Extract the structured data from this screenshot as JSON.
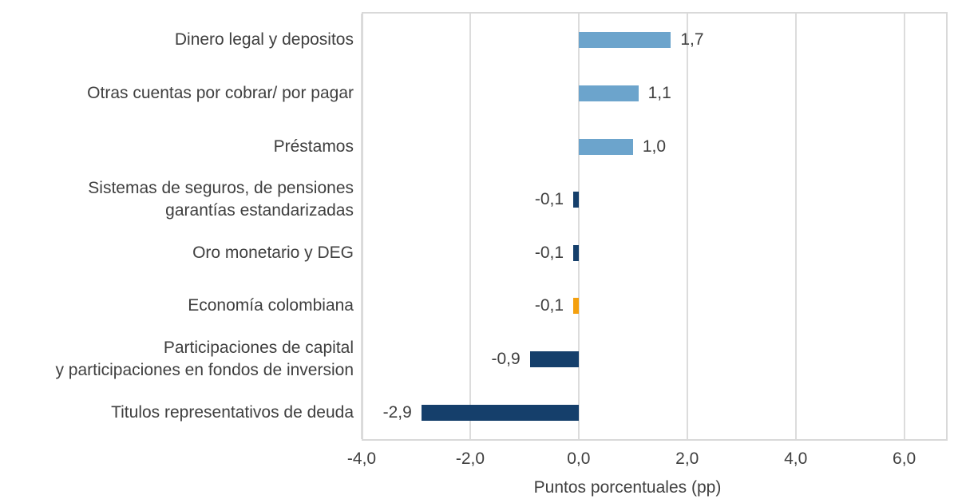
{
  "figure": {
    "background": "#FFFFFF"
  },
  "chart_data": {
    "type": "bar",
    "orientation": "horizontal",
    "title": "",
    "xlabel": "Puntos porcentuales (pp)",
    "ylabel": "",
    "categories": [
      "Dinero legal y depositos",
      "Otras cuentas por cobrar/ por pagar",
      "Préstamos",
      "Sistemas de seguros, de pensiones\ngarantías estandarizadas",
      "Oro monetario y DEG",
      "Economía colombiana",
      "Participaciones de capital\ny participaciones en fondos de inversion",
      "Titulos representativos de deuda"
    ],
    "values": [
      1.7,
      1.1,
      1.0,
      -0.1,
      -0.1,
      -0.1,
      -0.9,
      -2.9
    ],
    "value_labels": [
      "1,7",
      "1,1",
      "1,0",
      "-0,1",
      "-0,1",
      "-0,1",
      "-0,9",
      "-2,9"
    ],
    "bar_colors": [
      "#6CA4CC",
      "#6CA4CC",
      "#6CA4CC",
      "#153F6B",
      "#153F6B",
      "#F4A00E",
      "#153F6B",
      "#153F6B"
    ],
    "xlim": [
      -4.0,
      6.8
    ],
    "xticks": [
      -4,
      -2,
      0,
      2,
      4,
      6
    ],
    "xtick_labels": [
      "-4,0",
      "-2,0",
      "0,0",
      "2,0",
      "4,0",
      "6,0"
    ],
    "grid": "vertical-gridlines-on",
    "legend": "none",
    "decimal_separator": ","
  },
  "colors": {
    "positive_bar": "#6CA4CC",
    "negative_bar": "#153F6B",
    "highlight_bar": "#F4A00E",
    "gridline": "#DCDCDC",
    "plot_border": "#D9D9D9",
    "text": "#3F3F3F",
    "background": "#FFFFFF"
  }
}
